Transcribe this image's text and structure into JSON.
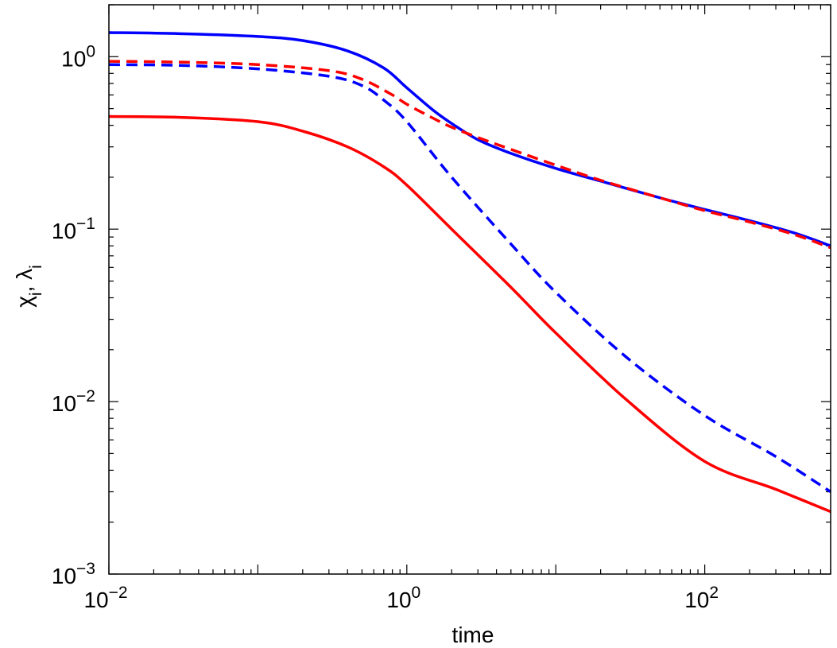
{
  "chart_data": {
    "type": "line",
    "title": "",
    "xlabel": "time",
    "ylabel": "χ_i, λ_i",
    "xscale": "log",
    "yscale": "log",
    "xlim": [
      0.01,
      700
    ],
    "ylim": [
      0.001,
      2
    ],
    "grid": false,
    "legend": "none",
    "x_ticks": [
      {
        "value": 0.01,
        "base": "10",
        "exp": "−2"
      },
      {
        "value": 1,
        "base": "10",
        "exp": "0"
      },
      {
        "value": 100,
        "base": "10",
        "exp": "2"
      }
    ],
    "y_ticks": [
      {
        "value": 0.001,
        "base": "10",
        "exp": "−3"
      },
      {
        "value": 0.01,
        "base": "10",
        "exp": "−2"
      },
      {
        "value": 0.1,
        "base": "10",
        "exp": "−1"
      },
      {
        "value": 1,
        "base": "10",
        "exp": "0"
      }
    ],
    "series": [
      {
        "color": "#0000ff",
        "style": "solid",
        "x": [
          0.01,
          0.03,
          0.1,
          0.2,
          0.4,
          0.7,
          1,
          1.5,
          2,
          3,
          5,
          10,
          20,
          50,
          100,
          200,
          400,
          700
        ],
        "y": [
          1.38,
          1.36,
          1.31,
          1.24,
          1.08,
          0.86,
          0.66,
          0.49,
          0.41,
          0.33,
          0.275,
          0.225,
          0.19,
          0.152,
          0.13,
          0.112,
          0.095,
          0.08
        ]
      },
      {
        "color": "#ff0000",
        "style": "dashed",
        "x": [
          0.01,
          0.03,
          0.1,
          0.3,
          0.5,
          0.8,
          1,
          1.5,
          2,
          3,
          5,
          10,
          20,
          50,
          100,
          200,
          400,
          700
        ],
        "y": [
          0.94,
          0.93,
          0.9,
          0.83,
          0.74,
          0.6,
          0.53,
          0.44,
          0.39,
          0.34,
          0.29,
          0.235,
          0.192,
          0.152,
          0.128,
          0.11,
          0.093,
          0.078
        ]
      },
      {
        "color": "#0000ff",
        "style": "dashed",
        "x": [
          0.01,
          0.03,
          0.1,
          0.3,
          0.5,
          0.7,
          1,
          2,
          5,
          10,
          30,
          100,
          300,
          700
        ],
        "y": [
          0.9,
          0.89,
          0.85,
          0.77,
          0.68,
          0.56,
          0.42,
          0.2,
          0.082,
          0.043,
          0.018,
          0.0083,
          0.0048,
          0.003
        ]
      },
      {
        "color": "#ff0000",
        "style": "solid",
        "x": [
          0.01,
          0.03,
          0.1,
          0.2,
          0.4,
          0.7,
          1,
          2,
          5,
          10,
          30,
          100,
          300,
          700
        ],
        "y": [
          0.45,
          0.445,
          0.42,
          0.37,
          0.3,
          0.23,
          0.18,
          0.1,
          0.046,
          0.025,
          0.0102,
          0.0045,
          0.0031,
          0.0023
        ]
      }
    ]
  }
}
